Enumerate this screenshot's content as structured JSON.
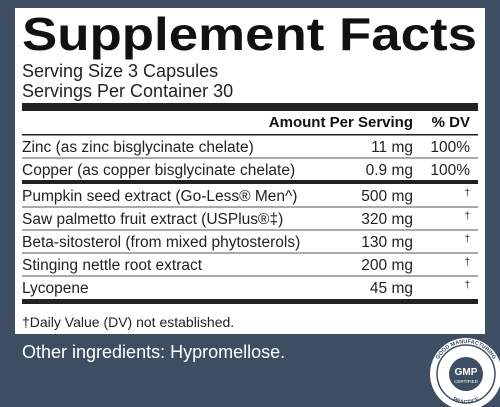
{
  "title": "Supplement Facts",
  "serving_size": "Serving Size 3 Capsules",
  "servings_per_container": "Servings Per Container 30",
  "table": {
    "header": [
      "Amount Per Serving",
      "% DV"
    ],
    "groups": [
      [
        [
          "Zinc (as zinc bisglycinate chelate)",
          "11 mg",
          "100%"
        ],
        [
          "Copper (as copper bisglycinate chelate)",
          "0.9 mg",
          "100%"
        ]
      ],
      [
        [
          "Pumpkin seed extract (Go-Less® Men^)",
          "500 mg",
          "†"
        ],
        [
          "Saw palmetto fruit extract (USPlus®‡)",
          "320 mg",
          "†"
        ],
        [
          "Beta-sitosterol (from mixed phytosterols)",
          "130 mg",
          "†"
        ],
        [
          "Stinging nettle root extract",
          "200 mg",
          "†"
        ],
        [
          "Lycopene",
          "45 mg",
          "†"
        ]
      ]
    ]
  },
  "footnote": "†Daily Value (DV) not established.",
  "other_ingredients": "Other ingredients: Hypromellose.",
  "badge": {
    "top": "GOOD MANUFACTURING",
    "center": "GMP",
    "sub": "CERTIFIED",
    "bottom": "PRACTICE"
  }
}
